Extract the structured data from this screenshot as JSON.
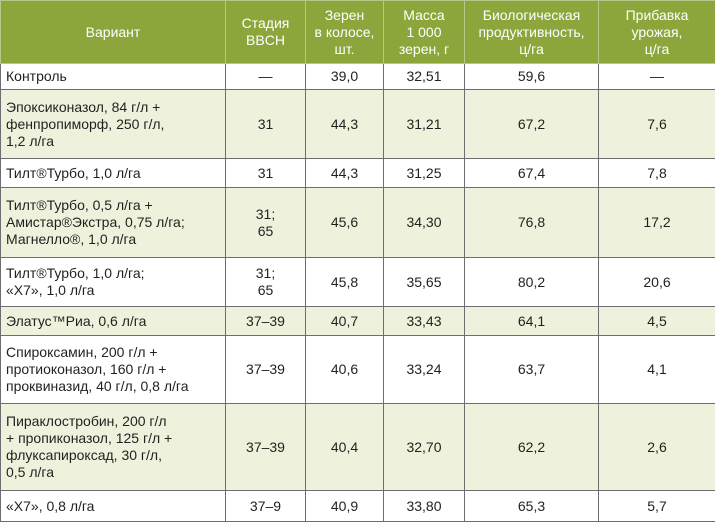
{
  "table": {
    "header": [
      "Вариант",
      "Стадия\nBBCH",
      "Зерен\nв колосе,\nшт.",
      "Масса\n1 000\nзерен, г",
      "Биологическая\nпродуктивность,\nц/га",
      "Прибавка\nурожая,\nц/га"
    ],
    "rows": [
      [
        "Контроль",
        "—",
        "39,0",
        "32,51",
        "59,6",
        "—"
      ],
      [
        "Эпоксиконазол, 84 г/л +\nфенпропиморф, 250 г/л,\n1,2 л/га",
        "31",
        "44,3",
        "31,21",
        "67,2",
        "7,6"
      ],
      [
        "Тилт®Турбо, 1,0 л/га",
        "31",
        "44,3",
        "31,25",
        "67,4",
        "7,8"
      ],
      [
        "Тилт®Турбо, 0,5 л/га +\nАмистар®Экстра, 0,75 л/га;\nМагнелло®, 1,0 л/га",
        "31;\n65",
        "45,6",
        "34,30",
        "76,8",
        "17,2"
      ],
      [
        "Тилт®Турбо, 1,0 л/га;\n«Х7», 1,0 л/га",
        "31;\n65",
        "45,8",
        "35,65",
        "80,2",
        "20,6"
      ],
      [
        "Элатус™Риа, 0,6 л/га",
        "37–39",
        "40,7",
        "33,43",
        "64,1",
        "4,5"
      ],
      [
        "Спироксамин, 200 г/л +\nпротиоконазол, 160 г/л +\nпроквиназид, 40 г/л, 0,8 л/га",
        "37–39",
        "40,6",
        "33,24",
        "63,7",
        "4,1"
      ],
      [
        "Пираклостробин, 200 г/л\n+ пропиконазол, 125 г/л +\nфлуксапироксад, 30 г/л,\n0,5 л/га",
        "37–39",
        "40,4",
        "32,70",
        "62,2",
        "2,6"
      ],
      [
        "«Х7», 0,8 л/га",
        "37–9",
        "40,9",
        "33,80",
        "65,3",
        "5,7"
      ]
    ]
  }
}
